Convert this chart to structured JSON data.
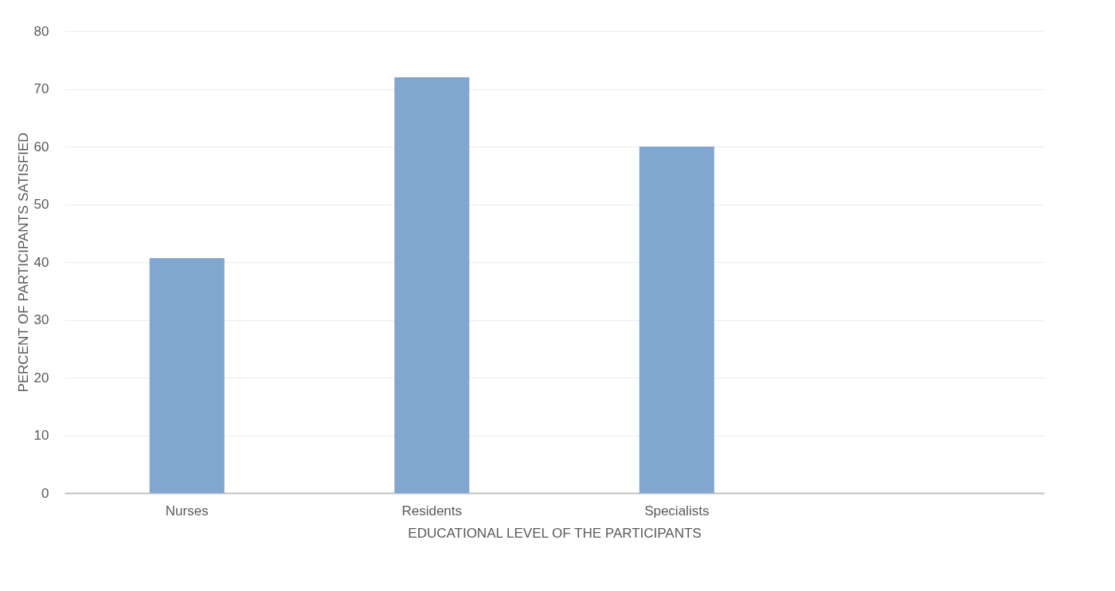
{
  "chart_data": {
    "type": "bar",
    "xlabel": "EDUCATIONAL LEVEL OF THE PARTICIPANTS",
    "ylabel": "PERCENT OF PARTICIPANTS SATISFIED",
    "categories": [
      "Nurses",
      "Residents",
      "Specialists",
      null
    ],
    "values": [
      40.7,
      72,
      60,
      null
    ],
    "color": "#81a6d0",
    "ylim": [
      0,
      80
    ],
    "yticks": [
      0,
      10,
      20,
      30,
      40,
      50,
      60,
      70,
      80
    ],
    "grid": "y"
  }
}
